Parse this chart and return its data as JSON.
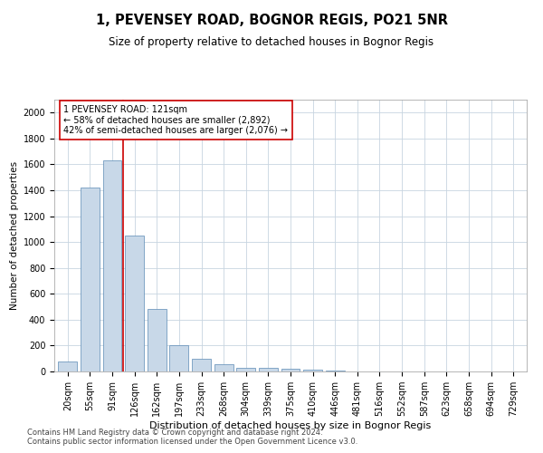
{
  "title": "1, PEVENSEY ROAD, BOGNOR REGIS, PO21 5NR",
  "subtitle": "Size of property relative to detached houses in Bognor Regis",
  "xlabel": "Distribution of detached houses by size in Bognor Regis",
  "ylabel": "Number of detached properties",
  "categories": [
    "20sqm",
    "55sqm",
    "91sqm",
    "126sqm",
    "162sqm",
    "197sqm",
    "233sqm",
    "268sqm",
    "304sqm",
    "339sqm",
    "375sqm",
    "410sqm",
    "446sqm",
    "481sqm",
    "516sqm",
    "552sqm",
    "587sqm",
    "623sqm",
    "658sqm",
    "694sqm",
    "729sqm"
  ],
  "values": [
    75,
    1420,
    1630,
    1050,
    480,
    200,
    100,
    55,
    30,
    25,
    20,
    15,
    5,
    3,
    2,
    1,
    1,
    1,
    0,
    0,
    0
  ],
  "bar_color": "#c8d8e8",
  "bar_edge_color": "#5b8ab5",
  "vline_x_index": 2,
  "vline_color": "#cc0000",
  "annotation_text": "1 PEVENSEY ROAD: 121sqm\n← 58% of detached houses are smaller (2,892)\n42% of semi-detached houses are larger (2,076) →",
  "annotation_box_color": "#ffffff",
  "annotation_box_edge_color": "#cc0000",
  "ylim": [
    0,
    2100
  ],
  "yticks": [
    0,
    200,
    400,
    600,
    800,
    1000,
    1200,
    1400,
    1600,
    1800,
    2000
  ],
  "background_color": "#ffffff",
  "grid_color": "#c8d4e0",
  "footer_line1": "Contains HM Land Registry data © Crown copyright and database right 2024.",
  "footer_line2": "Contains public sector information licensed under the Open Government Licence v3.0.",
  "title_fontsize": 10.5,
  "subtitle_fontsize": 8.5,
  "xlabel_fontsize": 8,
  "ylabel_fontsize": 7.5,
  "tick_fontsize": 7,
  "annotation_fontsize": 7,
  "footer_fontsize": 6
}
